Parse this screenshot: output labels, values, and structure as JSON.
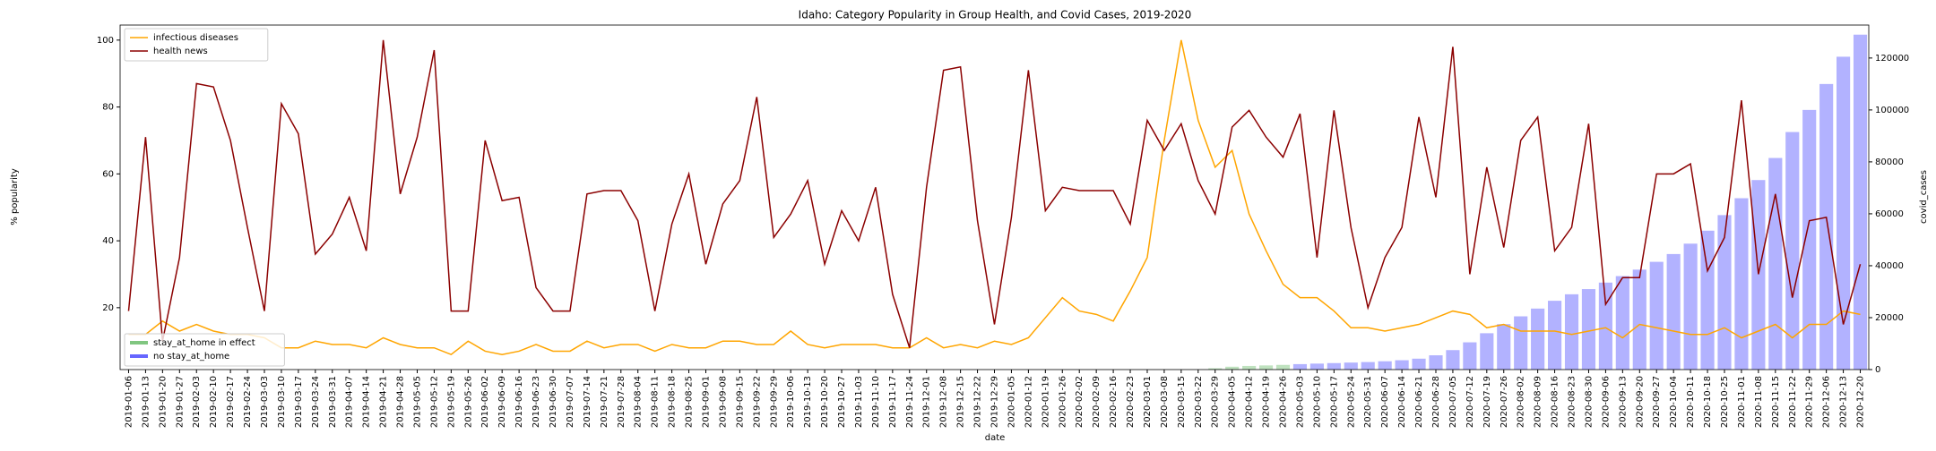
{
  "chart_data": {
    "type": "bar_line_dual",
    "title": "Idaho: Category Popularity in Group Health, and Covid Cases, 2019-2020",
    "xlabel": "date",
    "ylabel": "% popularity",
    "y2label": "covid_cases",
    "categories": [
      "2019-01-06",
      "2019-01-13",
      "2019-01-20",
      "2019-01-27",
      "2019-02-03",
      "2019-02-10",
      "2019-02-17",
      "2019-02-24",
      "2019-03-03",
      "2019-03-10",
      "2019-03-17",
      "2019-03-24",
      "2019-03-31",
      "2019-04-07",
      "2019-04-14",
      "2019-04-21",
      "2019-04-28",
      "2019-05-05",
      "2019-05-12",
      "2019-05-19",
      "2019-05-26",
      "2019-06-02",
      "2019-06-09",
      "2019-06-16",
      "2019-06-23",
      "2019-06-30",
      "2019-07-07",
      "2019-07-14",
      "2019-07-21",
      "2019-07-28",
      "2019-08-04",
      "2019-08-11",
      "2019-08-18",
      "2019-08-25",
      "2019-09-01",
      "2019-09-08",
      "2019-09-15",
      "2019-09-22",
      "2019-09-29",
      "2019-10-06",
      "2019-10-13",
      "2019-10-20",
      "2019-10-27",
      "2019-11-03",
      "2019-11-10",
      "2019-11-17",
      "2019-11-24",
      "2019-12-01",
      "2019-12-08",
      "2019-12-15",
      "2019-12-22",
      "2019-12-29",
      "2020-01-05",
      "2020-01-12",
      "2020-01-19",
      "2020-01-26",
      "2020-02-02",
      "2020-02-09",
      "2020-02-16",
      "2020-02-23",
      "2020-03-01",
      "2020-03-08",
      "2020-03-15",
      "2020-03-22",
      "2020-03-29",
      "2020-04-05",
      "2020-04-12",
      "2020-04-19",
      "2020-04-26",
      "2020-05-03",
      "2020-05-10",
      "2020-05-17",
      "2020-05-24",
      "2020-05-31",
      "2020-06-07",
      "2020-06-14",
      "2020-06-21",
      "2020-06-28",
      "2020-07-05",
      "2020-07-12",
      "2020-07-19",
      "2020-07-26",
      "2020-08-02",
      "2020-08-09",
      "2020-08-16",
      "2020-08-23",
      "2020-08-30",
      "2020-09-06",
      "2020-09-13",
      "2020-09-20",
      "2020-09-27",
      "2020-10-04",
      "2020-10-11",
      "2020-10-18",
      "2020-10-25",
      "2020-11-01",
      "2020-11-08",
      "2020-11-15",
      "2020-11-22",
      "2020-11-29",
      "2020-12-06",
      "2020-12-13",
      "2020-12-20"
    ],
    "series": [
      {
        "name": "infectious diseases",
        "kind": "line",
        "color": "#ffa500",
        "values": [
          12,
          12,
          16,
          13,
          15,
          13,
          12,
          12,
          11,
          8,
          8,
          10,
          9,
          9,
          8,
          11,
          9,
          8,
          8,
          6,
          10,
          7,
          6,
          7,
          9,
          7,
          7,
          10,
          8,
          9,
          9,
          7,
          9,
          8,
          8,
          10,
          10,
          9,
          9,
          13,
          9,
          8,
          9,
          9,
          9,
          8,
          8,
          11,
          8,
          9,
          8,
          10,
          9,
          11,
          17,
          23,
          19,
          18,
          16,
          25,
          35,
          70,
          100,
          76,
          62,
          67,
          48,
          37,
          27,
          23,
          23,
          19,
          14,
          14,
          13,
          14,
          15,
          17,
          19,
          18,
          14,
          15,
          13,
          13,
          13,
          12,
          13,
          14,
          11,
          15,
          14,
          13,
          12,
          12,
          14,
          11,
          13,
          15,
          11,
          15,
          15,
          19,
          18
        ]
      },
      {
        "name": "health news",
        "kind": "line",
        "color": "#8b0000",
        "values": [
          19,
          71,
          10,
          35,
          87,
          86,
          70,
          44,
          19,
          81,
          72,
          36,
          42,
          53,
          37,
          100,
          54,
          71,
          97,
          19,
          19,
          70,
          52,
          53,
          26,
          19,
          19,
          54,
          55,
          55,
          46,
          19,
          45,
          60,
          33,
          51,
          58,
          83,
          41,
          48,
          58,
          33,
          49,
          40,
          56,
          24,
          8,
          56,
          91,
          92,
          46,
          15,
          47,
          91,
          49,
          56,
          55,
          55,
          55,
          45,
          76,
          67,
          75,
          58,
          48,
          74,
          79,
          71,
          65,
          78,
          35,
          79,
          44,
          20,
          35,
          44,
          77,
          53,
          98,
          30,
          62,
          38,
          70,
          77,
          37,
          44,
          75,
          21,
          29,
          29,
          60,
          60,
          63,
          31,
          41,
          82,
          30,
          54,
          23,
          46,
          47,
          15,
          33
        ]
      },
      {
        "name": "stay_at_home in effect",
        "kind": "bar",
        "axis": "y2",
        "color": "#2ca02c",
        "values": [
          null,
          null,
          null,
          null,
          null,
          null,
          null,
          null,
          null,
          null,
          null,
          null,
          null,
          null,
          null,
          null,
          null,
          null,
          null,
          null,
          null,
          null,
          null,
          null,
          null,
          null,
          null,
          null,
          null,
          null,
          null,
          null,
          null,
          null,
          null,
          null,
          null,
          null,
          null,
          null,
          null,
          null,
          null,
          null,
          null,
          null,
          null,
          null,
          null,
          null,
          null,
          null,
          null,
          null,
          null,
          null,
          null,
          null,
          null,
          null,
          null,
          null,
          null,
          null,
          500,
          1100,
          1400,
          1600,
          1800,
          null,
          null,
          null,
          null,
          null,
          null,
          null,
          null,
          null,
          null,
          null,
          null,
          null,
          null,
          null,
          null,
          null,
          null,
          null,
          null,
          null,
          null,
          null,
          null,
          null,
          null,
          null,
          null,
          null,
          null,
          null,
          null,
          null,
          null
        ]
      },
      {
        "name": "no stay_at_home",
        "kind": "bar",
        "axis": "y2",
        "color": "#0000ff",
        "values": [
          0,
          0,
          0,
          0,
          0,
          0,
          0,
          0,
          0,
          0,
          0,
          0,
          0,
          0,
          0,
          0,
          0,
          0,
          0,
          0,
          0,
          0,
          0,
          0,
          0,
          0,
          0,
          0,
          0,
          0,
          0,
          0,
          0,
          0,
          0,
          0,
          0,
          0,
          0,
          0,
          0,
          0,
          0,
          0,
          0,
          0,
          0,
          0,
          0,
          0,
          0,
          0,
          0,
          0,
          0,
          0,
          0,
          0,
          0,
          0,
          0,
          0,
          0,
          0,
          null,
          null,
          null,
          null,
          null,
          2100,
          2300,
          2500,
          2700,
          2900,
          3200,
          3600,
          4200,
          5500,
          7500,
          10500,
          14000,
          17500,
          20500,
          23500,
          26500,
          29000,
          31000,
          33500,
          36000,
          38500,
          41500,
          44500,
          48500,
          53500,
          59500,
          66000,
          73000,
          81500,
          91500,
          100000,
          110000,
          120500,
          129000
        ]
      }
    ],
    "bar_alpha": 0.3,
    "ylim": [
      1.5,
      104.5
    ],
    "yticks": [
      20,
      40,
      60,
      80,
      100
    ],
    "y2lim": [
      0,
      132700
    ],
    "y2ticks": [
      0,
      20000,
      40000,
      60000,
      80000,
      100000,
      120000
    ],
    "legend": "upper left"
  }
}
